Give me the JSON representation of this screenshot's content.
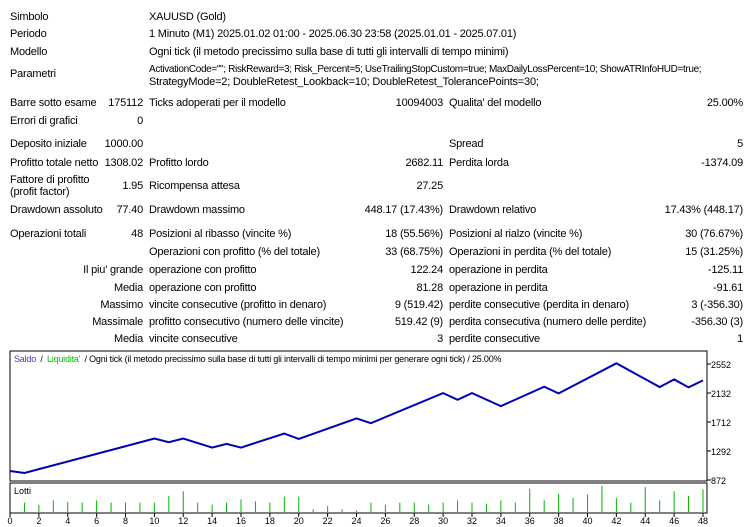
{
  "report": {
    "rows": [
      {
        "top": 11,
        "cells": [
          {
            "c": "l1",
            "t": "Simbolo"
          },
          {
            "c": "wide",
            "t": "XAUUSD (Gold)"
          }
        ]
      },
      {
        "top": 28,
        "cells": [
          {
            "c": "l1",
            "t": "Periodo"
          },
          {
            "c": "wide",
            "t": "1 Minuto (M1) 2025.01.02 01:00 - 2025.06.30 23:58 (2025.01.01 - 2025.07.01)"
          }
        ]
      },
      {
        "top": 46,
        "cells": [
          {
            "c": "l1",
            "t": "Modello"
          },
          {
            "c": "wide",
            "t": "Ogni tick (il metodo precissimo sulla base di tutti gli intervalli di tempo minimi)"
          }
        ]
      },
      {
        "top": 68,
        "cells": [
          {
            "c": "l1",
            "t": "Parametri"
          }
        ]
      },
      {
        "top": 63,
        "cells": [
          {
            "c": "wide",
            "t": "ActivationCode=\"\"; RiskReward=3; Risk_Percent=5; UseTrailingStopCustom=true; MaxDailyLossPercent=10; ShowATRInfoHUD=true;"
          }
        ]
      },
      {
        "top": 76,
        "cells": [
          {
            "c": "wide",
            "t": "StrategyMode=2; DoubleRetest_Lookback=10; DoubleRetest_TolerancePoints=30;"
          }
        ]
      },
      {
        "top": 97,
        "cells": [
          {
            "c": "l1",
            "t": "Barre sotto esame"
          },
          {
            "c": "v1",
            "t": "175112"
          },
          {
            "c": "l2",
            "t": "Ticks adoperati per il modello"
          },
          {
            "c": "v2",
            "t": "10094003"
          },
          {
            "c": "l3",
            "t": "Qualita' del modello"
          },
          {
            "c": "v3",
            "t": "25.00%"
          }
        ]
      },
      {
        "top": 115,
        "cells": [
          {
            "c": "l1",
            "t": "Errori di grafici"
          },
          {
            "c": "v1",
            "t": "0"
          }
        ]
      },
      {
        "top": 138,
        "cells": [
          {
            "c": "l1",
            "t": "Deposito iniziale"
          },
          {
            "c": "v1",
            "t": "1000.00"
          },
          {
            "c": "l3",
            "t": "Spread"
          },
          {
            "c": "v3",
            "t": "5"
          }
        ]
      },
      {
        "top": 157,
        "cells": [
          {
            "c": "l1",
            "t": "Profitto totale netto"
          },
          {
            "c": "v1",
            "t": "1308.02"
          },
          {
            "c": "l2",
            "t": "Profitto lordo"
          },
          {
            "c": "v2",
            "t": "2682.11"
          },
          {
            "c": "l3",
            "t": "Perdita lorda"
          },
          {
            "c": "v3",
            "t": "-1374.09"
          }
        ]
      },
      {
        "top": 174,
        "cells": [
          {
            "c": "l1",
            "t": "Fattore di profitto"
          }
        ]
      },
      {
        "top": 186,
        "cells": [
          {
            "c": "l1",
            "t": "(profit factor)"
          }
        ]
      },
      {
        "top": 180,
        "cells": [
          {
            "c": "v1",
            "t": "1.95"
          },
          {
            "c": "l2",
            "t": "Ricompensa attesa"
          },
          {
            "c": "v2",
            "t": "27.25"
          }
        ]
      },
      {
        "top": 204,
        "cells": [
          {
            "c": "l1",
            "t": "Drawdown assoluto"
          },
          {
            "c": "v1",
            "t": "77.40"
          },
          {
            "c": "l2",
            "t": "Drawdown massimo"
          },
          {
            "c": "v2",
            "t": "448.17 (17.43%)"
          },
          {
            "c": "l3",
            "t": "Drawdown relativo"
          },
          {
            "c": "v3",
            "t": "17.43% (448.17)"
          }
        ]
      },
      {
        "top": 228,
        "cells": [
          {
            "c": "l1",
            "t": "Operazioni totali"
          },
          {
            "c": "v1",
            "t": "48"
          },
          {
            "c": "l2",
            "t": "Posizioni al ribasso (vincite %)"
          },
          {
            "c": "v2",
            "t": "18 (55.56%)"
          },
          {
            "c": "l3",
            "t": "Posizioni al rialzo (vincite %)"
          },
          {
            "c": "v3",
            "t": "30 (76.67%)"
          }
        ]
      },
      {
        "top": 246,
        "cells": [
          {
            "c": "l2",
            "t": "Operazioni con profitto (% del totale)"
          },
          {
            "c": "v2",
            "t": "33 (68.75%)"
          },
          {
            "c": "l3",
            "t": "Operazioni in perdita (% del totale)"
          },
          {
            "c": "v3",
            "t": "15 (31.25%)"
          }
        ]
      },
      {
        "top": 264,
        "cells": [
          {
            "c": "v1",
            "t": "Il piu' grande"
          },
          {
            "c": "l2",
            "t": "operazione con profitto"
          },
          {
            "c": "v2",
            "t": "122.24"
          },
          {
            "c": "l3",
            "t": "operazione in perdita"
          },
          {
            "c": "v3",
            "t": "-125.11"
          }
        ]
      },
      {
        "top": 282,
        "cells": [
          {
            "c": "v1",
            "t": "Media"
          },
          {
            "c": "l2",
            "t": "operazione con profitto"
          },
          {
            "c": "v2",
            "t": "81.28"
          },
          {
            "c": "l3",
            "t": "operazione in perdita"
          },
          {
            "c": "v3",
            "t": "-91.61"
          }
        ]
      },
      {
        "top": 299,
        "cells": [
          {
            "c": "v1",
            "t": "Massimo"
          },
          {
            "c": "l2",
            "t": "vincite consecutive (profitto in denaro)"
          },
          {
            "c": "v2",
            "t": "9 (519.42)"
          },
          {
            "c": "l3",
            "t": "perdite consecutive (perdita in denaro)"
          },
          {
            "c": "v3",
            "t": "3 (-356.30)"
          }
        ]
      },
      {
        "top": 316,
        "cells": [
          {
            "c": "v1",
            "t": "Massimale"
          },
          {
            "c": "l2",
            "t": "profitto consecutivo (numero delle vincite)"
          },
          {
            "c": "v2",
            "t": "519.42 (9)"
          },
          {
            "c": "l3",
            "t": "perdita consecutiva (numero delle perdite)"
          },
          {
            "c": "v3",
            "t": "-356.30 (3)"
          }
        ]
      },
      {
        "top": 333,
        "cells": [
          {
            "c": "v1",
            "t": "Media"
          },
          {
            "c": "l2",
            "t": "vincite consecutive"
          },
          {
            "c": "v2",
            "t": "3"
          },
          {
            "c": "l3",
            "t": "perdite consecutive"
          },
          {
            "c": "v3",
            "t": "1"
          }
        ]
      }
    ]
  },
  "chart_data": {
    "type": "line",
    "legend": {
      "saldo": "Saldo",
      "liquidita": "Liquidita'",
      "info": "/ Ogni tick (il metodo precissimo sulla base di tutti gli intervalli di tempo minimi per generare ogni tick) / 25.00%",
      "sep": "/"
    },
    "colors": {
      "balance": "#0000b4",
      "lots": "#00b400",
      "liquidita": "#00c000"
    },
    "y_ticks": [
      2552,
      2132,
      1712,
      1292,
      872
    ],
    "ylim": [
      872,
      2552
    ],
    "x_ticks": [
      0,
      2,
      4,
      6,
      8,
      10,
      12,
      14,
      16,
      18,
      20,
      22,
      24,
      26,
      28,
      30,
      32,
      34,
      36,
      38,
      40,
      42,
      44,
      46,
      48
    ],
    "xlim": [
      0,
      48
    ],
    "balance": [
      [
        0,
        1003
      ],
      [
        1,
        974
      ],
      [
        10,
        1472
      ],
      [
        11,
        1419
      ],
      [
        12,
        1472
      ],
      [
        14,
        1342
      ],
      [
        15,
        1395
      ],
      [
        16,
        1342
      ],
      [
        19,
        1545
      ],
      [
        20,
        1467
      ],
      [
        24,
        1763
      ],
      [
        25,
        1695
      ],
      [
        30,
        2131
      ],
      [
        31,
        2034
      ],
      [
        32,
        2131
      ],
      [
        34,
        1942
      ],
      [
        37,
        2223
      ],
      [
        38,
        2126
      ],
      [
        42,
        2562
      ],
      [
        45,
        2218
      ],
      [
        46,
        2329
      ],
      [
        47,
        2213
      ],
      [
        48,
        2315
      ]
    ],
    "lots_label": "Lotti",
    "lots": [
      0,
      28,
      22,
      35,
      30,
      28,
      35,
      28,
      28,
      28,
      28,
      48,
      62,
      28,
      22,
      28,
      38,
      32,
      28,
      46,
      46,
      8,
      18,
      8,
      4,
      28,
      22,
      28,
      28,
      22,
      28,
      35,
      28,
      25,
      35,
      28,
      70,
      35,
      54,
      42,
      52,
      78,
      42,
      28,
      75,
      35,
      62,
      48,
      68
    ]
  }
}
